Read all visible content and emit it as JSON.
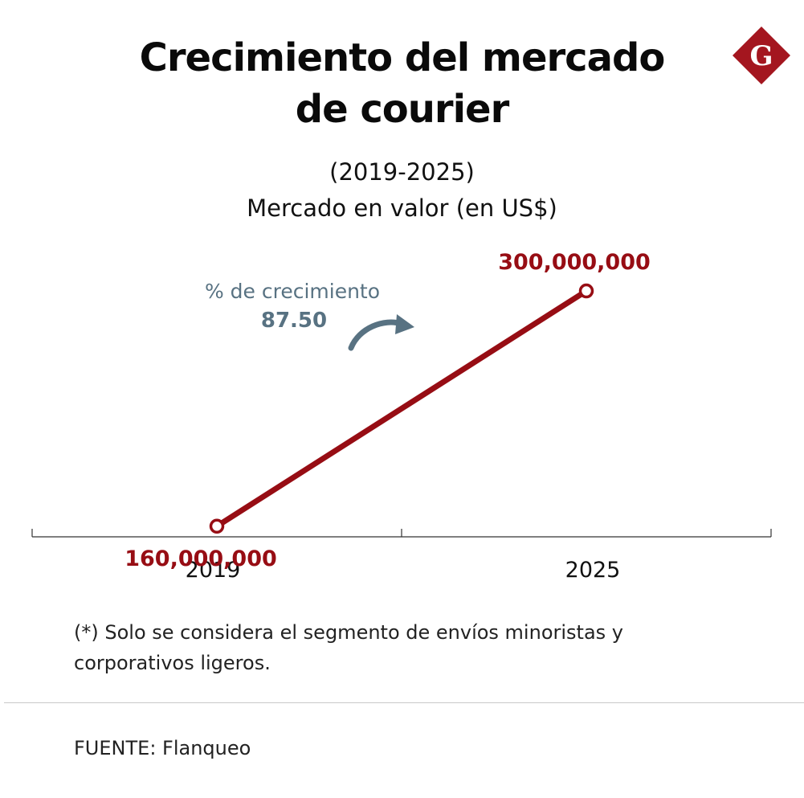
{
  "header": {
    "title_line1": "Crecimiento del mercado",
    "title_line2": "de courier",
    "subtitle_line1": "(2019-2025)",
    "subtitle_line2": "Mercado en valor (en US$)",
    "logo_letter": "G",
    "logo_color": "#a4161f"
  },
  "chart_data": {
    "type": "line",
    "x": [
      "2019",
      "2025"
    ],
    "series": [
      {
        "values": [
          160000000,
          300000000
        ]
      }
    ],
    "data_labels": [
      "160,000,000",
      "300,000,000"
    ],
    "ylim": [
      100000000,
      325000000
    ],
    "grid": false,
    "line_color": "#970d14",
    "annotation": {
      "label": "%  de crecimiento",
      "value": "87.50",
      "color": "#587282"
    }
  },
  "footer": {
    "note_line1": "(*) Solo se considera el segmento de envíos minoristas y",
    "note_line2": "corporativos ligeros.",
    "source": "FUENTE: Flanqueo"
  }
}
